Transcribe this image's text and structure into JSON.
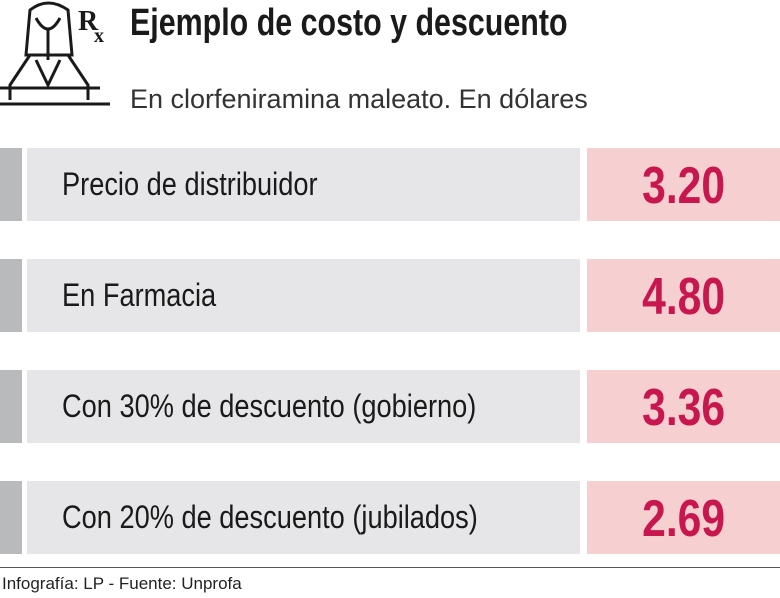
{
  "header": {
    "title": "Ejemplo de costo y descuento",
    "subtitle": "En clorfeniramina maleato. En dólares"
  },
  "table": {
    "rows": [
      [
        "Precio de distribuidor",
        "3.20"
      ],
      [
        "En Farmacia",
        "4.80"
      ],
      [
        "Con 30% de descuento (gobierno)",
        "3.36"
      ],
      [
        "Con 20% de descuento (jubilados)",
        "2.69"
      ]
    ]
  },
  "footer": "Infografía: LP - Fuente: Unprofa"
}
